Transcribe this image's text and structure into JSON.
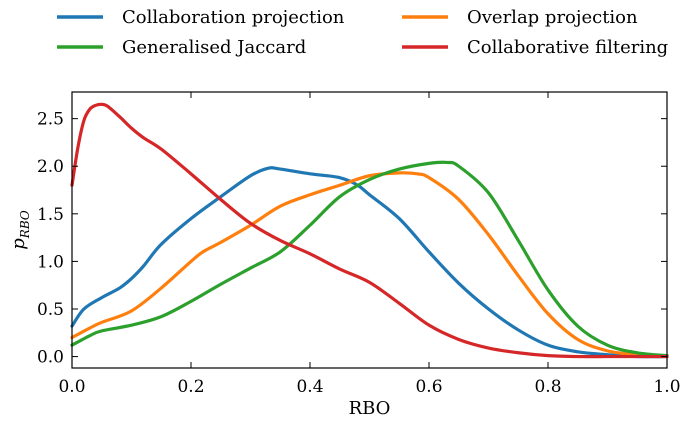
{
  "chart_data": {
    "type": "line",
    "xlabel": "RBO",
    "ylabel": "p",
    "ylabel_subscript": "RBO",
    "xlim": [
      0.0,
      1.0
    ],
    "ylim": [
      -0.12,
      2.78
    ],
    "xticks": [
      0.0,
      0.2,
      0.4,
      0.6,
      0.8,
      1.0
    ],
    "xtick_labels": [
      "0.0",
      "0.2",
      "0.4",
      "0.6",
      "0.8",
      "1.0"
    ],
    "yticks": [
      0.0,
      0.5,
      1.0,
      1.5,
      2.0,
      2.5
    ],
    "ytick_labels": [
      "0.0",
      "0.5",
      "1.0",
      "1.5",
      "2.0",
      "2.5"
    ],
    "grid": false,
    "legend_position": "top, outside plot, two columns",
    "series": [
      {
        "name": "Collaboration projection",
        "color": "#1f77b4",
        "x": [
          0.0,
          0.02,
          0.05,
          0.08,
          0.1,
          0.12,
          0.15,
          0.2,
          0.25,
          0.3,
          0.33,
          0.35,
          0.4,
          0.45,
          0.48,
          0.5,
          0.55,
          0.6,
          0.65,
          0.7,
          0.75,
          0.8,
          0.85,
          0.9,
          0.95,
          1.0
        ],
        "y": [
          0.32,
          0.5,
          0.62,
          0.72,
          0.82,
          0.95,
          1.18,
          1.45,
          1.68,
          1.9,
          1.98,
          1.97,
          1.92,
          1.88,
          1.8,
          1.7,
          1.45,
          1.1,
          0.77,
          0.5,
          0.28,
          0.12,
          0.05,
          0.02,
          0.0,
          0.0
        ]
      },
      {
        "name": "Overlap projection",
        "color": "#ff7f0e",
        "x": [
          0.0,
          0.03,
          0.05,
          0.1,
          0.15,
          0.2,
          0.22,
          0.25,
          0.3,
          0.35,
          0.4,
          0.45,
          0.5,
          0.55,
          0.58,
          0.6,
          0.65,
          0.7,
          0.75,
          0.8,
          0.85,
          0.9,
          0.95,
          1.0
        ],
        "y": [
          0.2,
          0.3,
          0.36,
          0.48,
          0.72,
          1.0,
          1.1,
          1.2,
          1.38,
          1.58,
          1.7,
          1.8,
          1.9,
          1.93,
          1.92,
          1.88,
          1.65,
          1.28,
          0.85,
          0.45,
          0.18,
          0.06,
          0.02,
          0.0
        ]
      },
      {
        "name": "Generalised Jaccard",
        "color": "#2ca02c",
        "x": [
          0.0,
          0.03,
          0.05,
          0.1,
          0.15,
          0.2,
          0.25,
          0.3,
          0.35,
          0.4,
          0.45,
          0.5,
          0.55,
          0.6,
          0.63,
          0.65,
          0.7,
          0.75,
          0.8,
          0.85,
          0.9,
          0.95,
          1.0
        ],
        "y": [
          0.12,
          0.22,
          0.27,
          0.33,
          0.42,
          0.58,
          0.76,
          0.93,
          1.1,
          1.38,
          1.68,
          1.86,
          1.97,
          2.03,
          2.04,
          2.0,
          1.72,
          1.22,
          0.7,
          0.32,
          0.12,
          0.04,
          0.01
        ]
      },
      {
        "name": "Collaborative filtering",
        "color": "#d62728",
        "x": [
          0.0,
          0.01,
          0.02,
          0.03,
          0.04,
          0.05,
          0.06,
          0.08,
          0.1,
          0.12,
          0.15,
          0.2,
          0.25,
          0.3,
          0.35,
          0.4,
          0.45,
          0.5,
          0.55,
          0.6,
          0.65,
          0.7,
          0.75,
          0.8,
          0.85,
          0.9,
          0.95,
          1.0
        ],
        "y": [
          1.8,
          2.2,
          2.48,
          2.6,
          2.64,
          2.65,
          2.63,
          2.52,
          2.4,
          2.3,
          2.18,
          1.92,
          1.65,
          1.4,
          1.22,
          1.08,
          0.92,
          0.78,
          0.56,
          0.33,
          0.18,
          0.09,
          0.04,
          0.01,
          0.0,
          0.0,
          0.0,
          0.0
        ]
      }
    ]
  }
}
